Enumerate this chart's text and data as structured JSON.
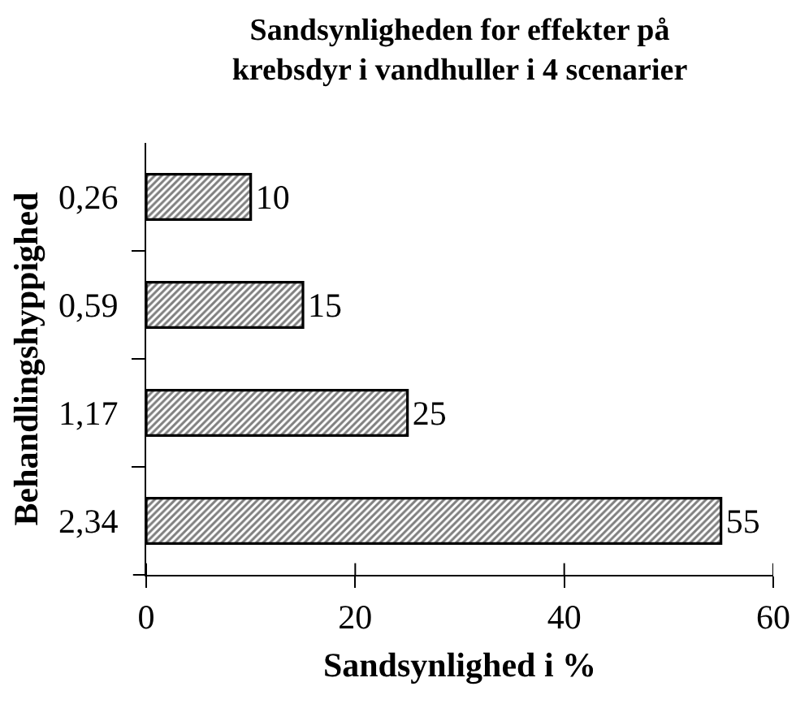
{
  "chart_data": {
    "type": "bar",
    "orientation": "horizontal",
    "title": "Sandsynligheden for effekter på\nkrebsdyr i vandhuller i 4 scenarier",
    "xlabel": "Sandsynlighed i %",
    "ylabel": "Behandlingshyppighed",
    "categories": [
      "0,26",
      "0,59",
      "1,17",
      "2,34"
    ],
    "values": [
      10,
      15,
      25,
      55
    ],
    "color": "#000000",
    "xlim": [
      0,
      60
    ],
    "xticks": [
      0,
      20,
      40,
      60
    ],
    "data_labels": true
  }
}
